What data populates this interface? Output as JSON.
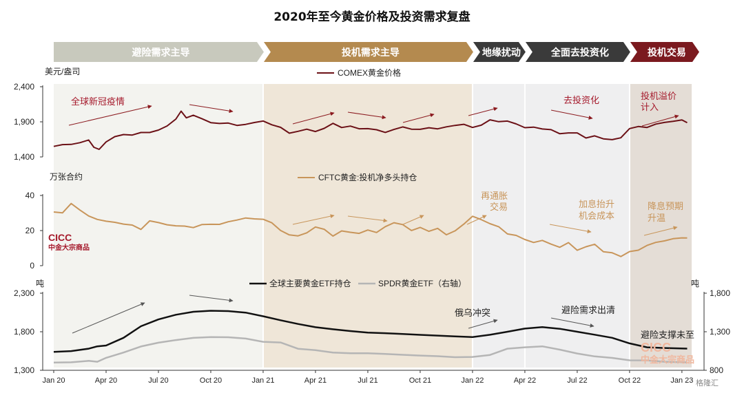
{
  "title": "2020年至今黄金价格及投资需求复盘",
  "phases": [
    {
      "label": "避险需求主导",
      "start": 0,
      "end": 12,
      "color": "#c8c9bd",
      "band": "#f3f3ef"
    },
    {
      "label": "投机需求主导",
      "start": 12,
      "end": 24,
      "color": "#b48a4f",
      "band": "#efe6d8"
    },
    {
      "label": "地缘扰动",
      "start": 24,
      "end": 27,
      "color": "#3a3a3a",
      "band": "#efeff0"
    },
    {
      "label": "全面去投资化",
      "start": 27,
      "end": 33,
      "color": "#3a3a3a",
      "band": "#efeff0"
    },
    {
      "label": "投机交易",
      "start": 33,
      "end": 36.6,
      "color": "#7b1a1f",
      "band": "#e4ddd6"
    }
  ],
  "annotations": {
    "covid": "全球新冠疫情",
    "deinvest": "去投资化",
    "spec_premium_1": "投机溢价",
    "spec_premium_2": "计入",
    "reflation_1": "再通胀",
    "reflation_2": "交易",
    "hike_1": "加息抬升",
    "hike_2": "机会成本",
    "cut_1": "降息预期",
    "cut_2": "升温",
    "russia": "俄乌冲突",
    "exit": "避险需求出清",
    "support": "避险支撑未至"
  },
  "watermarks": {
    "left_1": "CICC",
    "left_2": "中金大宗商品",
    "right_1": "CICC",
    "right_2": "中金大宗商品",
    "corner": "格隆汇"
  },
  "colors": {
    "gold_price": "#6b1016",
    "cftc": "#c8955a",
    "global_etf": "#111111",
    "spdr": "#b5b5b5",
    "arrow_red": "#8b1a1f",
    "arrow_gold": "#c8955a",
    "arrow_dark": "#555555"
  },
  "chart_data": [
    {
      "type": "line",
      "title": "",
      "ylabel": "美元/盎司",
      "ylim": [
        1400,
        2400
      ],
      "yticks": [
        "2,400",
        "1,900",
        "1,400"
      ],
      "series": [
        {
          "name": "COMEX黄金价格",
          "x": [
            0,
            0.5,
            1,
            1.5,
            2,
            2.3,
            2.6,
            3,
            3.5,
            4,
            4.5,
            5,
            5.5,
            6,
            6.5,
            7,
            7.3,
            7.6,
            8,
            8.5,
            9,
            9.5,
            10,
            10.5,
            11,
            11.5,
            12,
            12.5,
            13,
            13.5,
            14,
            14.5,
            15,
            15.5,
            16,
            16.5,
            17,
            17.5,
            18,
            18.5,
            19,
            19.5,
            20,
            20.5,
            21,
            21.5,
            22,
            22.5,
            23,
            23.5,
            24,
            24.5,
            25,
            25.5,
            26,
            26.5,
            27,
            27.5,
            28,
            28.5,
            29,
            29.5,
            30,
            30.5,
            31,
            31.5,
            32,
            32.5,
            33,
            33.5,
            34,
            34.5,
            35,
            35.5,
            36,
            36.3
          ],
          "y": [
            1560,
            1565,
            1580,
            1600,
            1640,
            1540,
            1500,
            1610,
            1690,
            1730,
            1720,
            1740,
            1760,
            1790,
            1840,
            1950,
            2050,
            1960,
            1990,
            1950,
            1890,
            1880,
            1880,
            1840,
            1860,
            1890,
            1900,
            1850,
            1820,
            1750,
            1770,
            1790,
            1760,
            1800,
            1880,
            1830,
            1850,
            1800,
            1810,
            1790,
            1760,
            1790,
            1820,
            1800,
            1800,
            1810,
            1800,
            1820,
            1840,
            1860,
            1810,
            1860,
            1930,
            1900,
            1920,
            1870,
            1810,
            1820,
            1790,
            1780,
            1720,
            1750,
            1730,
            1660,
            1690,
            1660,
            1640,
            1670,
            1800,
            1830,
            1820,
            1860,
            1880,
            1900,
            1930,
            1880
          ]
        }
      ]
    },
    {
      "type": "line",
      "ylabel": "万张合约",
      "ylim": [
        0,
        40
      ],
      "yticks": [
        "40",
        "20",
        "0"
      ],
      "series": [
        {
          "name": "CFTC黄金:投机净多头持仓",
          "x": [
            0,
            0.5,
            1,
            1.5,
            2,
            2.5,
            3,
            3.5,
            4,
            4.5,
            5,
            5.5,
            6,
            6.5,
            7,
            7.5,
            8,
            8.5,
            9,
            9.5,
            10,
            10.5,
            11,
            11.5,
            12,
            12.5,
            13,
            13.5,
            14,
            14.5,
            15,
            15.5,
            16,
            16.5,
            17,
            17.5,
            18,
            18.5,
            19,
            19.5,
            20,
            20.5,
            21,
            21.5,
            22,
            22.5,
            23,
            23.5,
            24,
            24.5,
            25,
            25.5,
            26,
            26.5,
            27,
            27.5,
            28,
            28.5,
            29,
            29.5,
            30,
            30.5,
            31,
            31.5,
            32,
            32.5,
            33,
            33.5,
            34,
            34.5,
            35,
            35.5,
            36,
            36.3
          ],
          "y": [
            31,
            30,
            35,
            32,
            28,
            26,
            25,
            25,
            24,
            23,
            21,
            26,
            25,
            23,
            23,
            23,
            22,
            23,
            24,
            24,
            25,
            26,
            27,
            27,
            26,
            24,
            20,
            18,
            17,
            19,
            22,
            21,
            17,
            20,
            19,
            18,
            20,
            19,
            22,
            24,
            23,
            20,
            22,
            20,
            21,
            18,
            20,
            24,
            28,
            26,
            24,
            22,
            18,
            17,
            15,
            13,
            14,
            12,
            10,
            13,
            9,
            11,
            12,
            8,
            7,
            5,
            8,
            9,
            12,
            13,
            14,
            15,
            16,
            16
          ]
        }
      ]
    },
    {
      "type": "line",
      "ylabel": "吨",
      "ylim": [
        1300,
        2300
      ],
      "yticks": [
        "2,300",
        "1,800",
        "1,300"
      ],
      "y2label": "吨",
      "y2lim": [
        800,
        1800
      ],
      "y2ticks": [
        "1,800",
        "1,300",
        "800"
      ],
      "x_tick_labels": [
        "Jan 20",
        "Apr 20",
        "Jul 20",
        "Oct 20",
        "Jan 21",
        "Apr 21",
        "Jul 21",
        "Oct 21",
        "Jan 22",
        "Apr 22",
        "Jul 22",
        "Oct 22",
        "Jan 23"
      ],
      "series": [
        {
          "name": "全球主要黄金ETF持仓",
          "axis": "left",
          "x": [
            0,
            1,
            2,
            2.5,
            3,
            4,
            5,
            6,
            7,
            8,
            9,
            10,
            11,
            12,
            13,
            14,
            15,
            16,
            17,
            18,
            19,
            20,
            21,
            22,
            23,
            24,
            25,
            26,
            27,
            28,
            29,
            30,
            31,
            32,
            33,
            34,
            35,
            36.3
          ],
          "y": [
            1540,
            1550,
            1580,
            1610,
            1620,
            1720,
            1870,
            1960,
            2020,
            2060,
            2070,
            2070,
            2050,
            2000,
            1950,
            1900,
            1860,
            1830,
            1810,
            1790,
            1780,
            1770,
            1760,
            1750,
            1740,
            1730,
            1760,
            1800,
            1840,
            1860,
            1840,
            1800,
            1760,
            1720,
            1650,
            1600,
            1590,
            1580
          ]
        },
        {
          "name": "SPDR黄金ETF（右轴）",
          "axis": "right",
          "x": [
            0,
            1,
            2,
            2.5,
            3,
            4,
            5,
            6,
            7,
            8,
            9,
            10,
            11,
            12,
            13,
            14,
            15,
            16,
            17,
            18,
            19,
            20,
            21,
            22,
            23,
            24,
            25,
            26,
            27,
            28,
            29,
            30,
            31,
            32,
            33,
            34,
            35,
            36.3
          ],
          "y": [
            900,
            905,
            920,
            910,
            960,
            1030,
            1110,
            1160,
            1190,
            1220,
            1230,
            1230,
            1210,
            1170,
            1160,
            1080,
            1060,
            1030,
            1020,
            1020,
            1010,
            1000,
            990,
            985,
            970,
            975,
            1000,
            1080,
            1100,
            1110,
            1070,
            1020,
            980,
            960,
            930,
            930,
            910,
            905
          ]
        }
      ]
    }
  ]
}
